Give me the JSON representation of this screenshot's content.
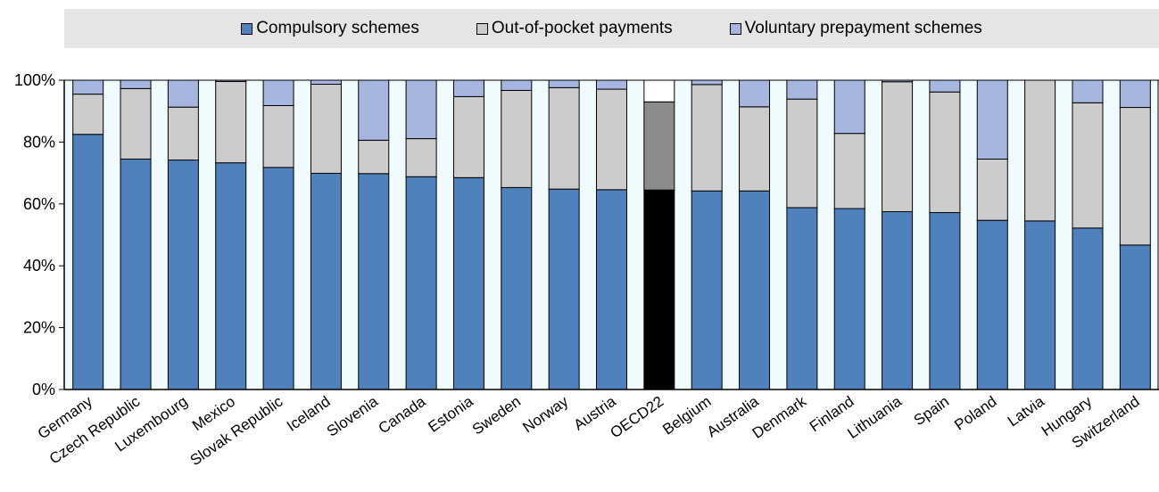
{
  "chart_data": {
    "type": "bar",
    "stacked": true,
    "percent": true,
    "categories": [
      "Germany",
      "Czech Republic",
      "Luxembourg",
      "Mexico",
      "Slovak Republic",
      "Iceland",
      "Slovenia",
      "Canada",
      "Estonia",
      "Sweden",
      "Norway",
      "Austria",
      "OECD22",
      "Belgium",
      "Australia",
      "Denmark",
      "Finland",
      "Lithuania",
      "Spain",
      "Poland",
      "Latvia",
      "Hungary",
      "Switzerland"
    ],
    "series": [
      {
        "name": "Compulsory schemes",
        "color": "#4f81bd",
        "values": [
          82.5,
          74.5,
          74.2,
          73.3,
          71.8,
          69.9,
          69.8,
          68.8,
          68.5,
          65.3,
          64.8,
          64.6,
          64.5,
          64.2,
          64.2,
          58.8,
          58.5,
          57.5,
          57.2,
          54.7,
          54.5,
          52.2,
          46.7
        ]
      },
      {
        "name": "Out-of-pocket payments",
        "color": "#cccccc",
        "values": [
          13.0,
          22.8,
          17.1,
          26.3,
          20.0,
          28.8,
          10.8,
          12.3,
          26.2,
          31.4,
          32.8,
          32.5,
          28.5,
          34.4,
          27.2,
          35.1,
          24.3,
          42.0,
          39.0,
          19.8,
          45.5,
          40.5,
          44.5
        ]
      },
      {
        "name": "Voluntary prepayment schemes",
        "color": "#a6b6e0",
        "values": [
          4.5,
          2.7,
          8.7,
          0.4,
          8.2,
          1.3,
          19.4,
          18.9,
          5.3,
          3.3,
          2.4,
          2.9,
          7.0,
          1.4,
          8.6,
          6.1,
          17.2,
          0.5,
          3.8,
          25.5,
          0.0,
          7.3,
          8.8
        ]
      }
    ],
    "highlight": {
      "category": "OECD22",
      "colors": [
        "#000000",
        "#8c8c8c",
        "#ffffff"
      ]
    },
    "yticks": [
      "0%",
      "20%",
      "40%",
      "60%",
      "80%",
      "100%"
    ],
    "ylim": [
      0,
      100
    ],
    "xlabel": "",
    "ylabel": "",
    "grid": false,
    "legend_position": "top"
  }
}
